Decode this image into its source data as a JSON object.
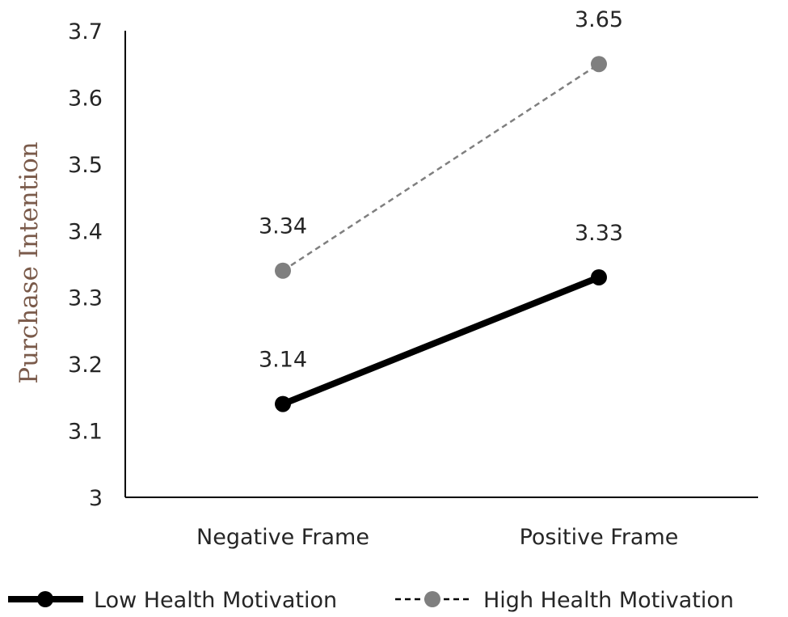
{
  "chart_data": {
    "type": "line",
    "categories": [
      "Negative Frame",
      "Positive Frame"
    ],
    "ylabel": "Purchase Intention",
    "xlabel": "",
    "ylim": [
      3,
      3.7
    ],
    "yticks": [
      "3",
      "3.1",
      "3.2",
      "3.3",
      "3.4",
      "3.5",
      "3.6",
      "3.7"
    ],
    "grid": false,
    "legend_position": "bottom",
    "series": [
      {
        "name": "Low Health Motivation",
        "values": [
          3.14,
          3.33
        ],
        "labels": [
          "3.14",
          "3.33"
        ],
        "color": "#000000",
        "style": "solid"
      },
      {
        "name": "High Health Motivation",
        "values": [
          3.34,
          3.65
        ],
        "labels": [
          "3.34",
          "3.65"
        ],
        "color": "#7f7f7f",
        "style": "dashed"
      }
    ]
  }
}
